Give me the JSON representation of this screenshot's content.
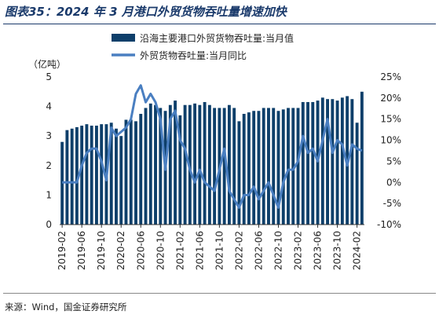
{
  "figure_title": "图表35：2024 年 3 月港口外贸货物吞吐量增速加快",
  "source_note": "来源：Wind，国金证券研究所",
  "colors": {
    "bar": "#0e3f6a",
    "line": "#4a7fc1",
    "title": "#1a3a6b"
  },
  "chart_data": {
    "type": "bar",
    "left_unit_label": "（亿吨）",
    "x_tick_labels": [
      "2019-02",
      "2019-06",
      "2019-10",
      "2020-02",
      "2020-06",
      "2020-10",
      "2021-02",
      "2021-06",
      "2021-10",
      "2022-02",
      "2022-06",
      "2022-10",
      "2023-02",
      "2023-06",
      "2023-10",
      "2024-02"
    ],
    "y_left": {
      "min": 0,
      "max": 5,
      "ticks": [
        "0",
        "1",
        "2",
        "3",
        "4",
        "5"
      ]
    },
    "y_right": {
      "min": -10,
      "max": 25,
      "ticks": [
        "-10%",
        "-5%",
        "0%",
        "5%",
        "10%",
        "15%",
        "20%",
        "25%"
      ]
    },
    "legend_position": "top",
    "grid": false,
    "series": [
      {
        "name": "沿海主要港口外贸货物吞吐量:当月值",
        "axis": "left",
        "type": "bar",
        "x": [
          "2019-02",
          "2019-03",
          "2019-04",
          "2019-05",
          "2019-06",
          "2019-07",
          "2019-08",
          "2019-09",
          "2019-10",
          "2019-11",
          "2019-12",
          "2020-01",
          "2020-02",
          "2020-03",
          "2020-04",
          "2020-05",
          "2020-06",
          "2020-07",
          "2020-08",
          "2020-09",
          "2020-10",
          "2020-11",
          "2020-12",
          "2021-01",
          "2021-02",
          "2021-03",
          "2021-04",
          "2021-05",
          "2021-06",
          "2021-07",
          "2021-08",
          "2021-09",
          "2021-10",
          "2021-11",
          "2021-12",
          "2022-01",
          "2022-02",
          "2022-03",
          "2022-04",
          "2022-05",
          "2022-06",
          "2022-07",
          "2022-08",
          "2022-09",
          "2022-10",
          "2022-11",
          "2022-12",
          "2023-01",
          "2023-02",
          "2023-03",
          "2023-04",
          "2023-05",
          "2023-06",
          "2023-07",
          "2023-08",
          "2023-09",
          "2023-10",
          "2023-11",
          "2023-12",
          "2024-01",
          "2024-02",
          "2024-03"
        ],
        "values": [
          2.8,
          3.2,
          3.25,
          3.3,
          3.35,
          3.4,
          3.35,
          3.35,
          3.4,
          3.4,
          3.45,
          3.25,
          3.0,
          3.55,
          3.55,
          3.5,
          3.75,
          3.95,
          4.1,
          4.05,
          3.95,
          3.85,
          4.05,
          4.2,
          3.7,
          4.05,
          4.05,
          4.1,
          4.05,
          4.15,
          4.05,
          3.95,
          3.95,
          3.95,
          4.05,
          3.95,
          3.5,
          3.75,
          3.8,
          3.85,
          3.85,
          3.95,
          3.95,
          3.95,
          3.85,
          3.9,
          3.95,
          3.95,
          3.95,
          4.15,
          4.15,
          4.15,
          4.2,
          4.3,
          4.25,
          4.25,
          4.2,
          4.3,
          4.35,
          4.25,
          3.45,
          4.5
        ]
      },
      {
        "name": "外贸货物吞吐量:当月同比",
        "axis": "right",
        "type": "line",
        "x": [
          "2019-02",
          "2019-03",
          "2019-04",
          "2019-05",
          "2019-06",
          "2019-07",
          "2019-08",
          "2019-09",
          "2019-10",
          "2019-11",
          "2019-12",
          "2020-01",
          "2020-02",
          "2020-03",
          "2020-04",
          "2020-05",
          "2020-06",
          "2020-07",
          "2020-08",
          "2020-09",
          "2020-10",
          "2020-11",
          "2020-12",
          "2021-01",
          "2021-02",
          "2021-03",
          "2021-04",
          "2021-05",
          "2021-06",
          "2021-07",
          "2021-08",
          "2021-09",
          "2021-10",
          "2021-11",
          "2021-12",
          "2022-01",
          "2022-02",
          "2022-03",
          "2022-04",
          "2022-05",
          "2022-06",
          "2022-07",
          "2022-08",
          "2022-09",
          "2022-10",
          "2022-11",
          "2022-12",
          "2023-01",
          "2023-02",
          "2023-03",
          "2023-04",
          "2023-05",
          "2023-06",
          "2023-07",
          "2023-08",
          "2023-09",
          "2023-10",
          "2023-11",
          "2023-12",
          "2024-01",
          "2024-02",
          "2024-03"
        ],
        "values": [
          0,
          0,
          0,
          0,
          4,
          7,
          8,
          8,
          5,
          0.5,
          13,
          11,
          12,
          13,
          15,
          21,
          23,
          19,
          21,
          19,
          15,
          3,
          15,
          17,
          10,
          8,
          3,
          0,
          3,
          0,
          -1,
          -2,
          3,
          8,
          -2,
          -4,
          -6,
          -3,
          -3,
          -1,
          -4,
          -2,
          0,
          -3,
          -6,
          0,
          3,
          3,
          5,
          11,
          7,
          8,
          5,
          10,
          15,
          7,
          10,
          9,
          4,
          9,
          8,
          7.5
        ]
      }
    ]
  }
}
